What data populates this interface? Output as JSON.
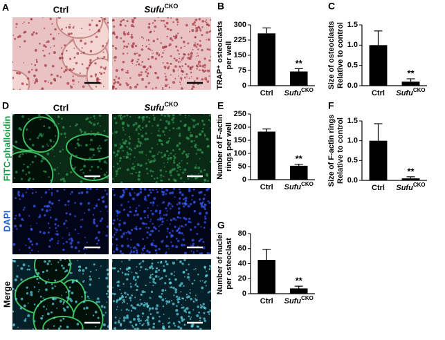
{
  "image_panels": {
    "panel_a": "A",
    "panel_d": "D",
    "col_ctrl": "Ctrl",
    "col_sufu": "Sufu",
    "col_sufu_sup": "CKO",
    "row_labels": [
      "FITC-phalloidin",
      "DAPI",
      "Merge"
    ]
  },
  "chart_data": [
    {
      "type": "bar",
      "panel": "B",
      "ylabel": [
        "TRAP⁺ osteoclasts",
        "per well"
      ],
      "categories": [
        "Ctrl",
        "Sufu"
      ],
      "superscripts": {
        "1": "CKO"
      },
      "values": [
        258,
        70
      ],
      "errors": [
        27,
        14
      ],
      "annotations": {
        "1": "**"
      },
      "color": "#000000",
      "ylim": [
        0,
        300
      ],
      "yticks": [
        0,
        75,
        150,
        225,
        300
      ]
    },
    {
      "type": "bar",
      "panel": "C",
      "ylabel": [
        "Size of osteoclasts",
        "Relative to control"
      ],
      "categories": [
        "Ctrl",
        "Sufu"
      ],
      "superscripts": {
        "1": "CKO"
      },
      "values": [
        1.0,
        0.1
      ],
      "errors": [
        0.35,
        0.07
      ],
      "annotations": {
        "1": "**"
      },
      "color": "#000000",
      "ylim": [
        0,
        1.5
      ],
      "yticks": [
        {
          "value": 0,
          "label": "0.0"
        },
        {
          "value": 0.5,
          "label": "0.5"
        },
        {
          "value": 1,
          "label": "1.0"
        },
        {
          "value": 1.5,
          "label": "1.5"
        }
      ]
    },
    {
      "type": "bar",
      "panel": "E",
      "ylabel": [
        "Number of F-actin",
        "rings per well"
      ],
      "categories": [
        "Ctrl",
        "Sufu"
      ],
      "superscripts": {
        "1": "CKO"
      },
      "values": [
        183,
        53
      ],
      "errors": [
        10,
        6
      ],
      "annotations": {
        "1": "**"
      },
      "color": "#000000",
      "ylim": [
        0,
        250
      ],
      "yticks": [
        0,
        50,
        100,
        150,
        200,
        250
      ]
    },
    {
      "type": "bar",
      "panel": "F",
      "ylabel": [
        "Size of F-actin rings",
        "Relative to control"
      ],
      "categories": [
        "Ctrl",
        "Sufu"
      ],
      "superscripts": {
        "1": "CKO"
      },
      "values": [
        1.0,
        0.05
      ],
      "errors": [
        0.43,
        0.04
      ],
      "annotations": {
        "1": "**"
      },
      "color": "#000000",
      "ylim": [
        0,
        1.5
      ],
      "yticks": [
        {
          "value": 0,
          "label": "0.0"
        },
        {
          "value": 0.5,
          "label": "0.5"
        },
        {
          "value": 1,
          "label": "1.0"
        },
        {
          "value": 1.5,
          "label": "1.5"
        }
      ]
    },
    {
      "type": "bar",
      "panel": "G",
      "ylabel": [
        "Number of nuclei",
        "per osteoclast"
      ],
      "categories": [
        "Ctrl",
        "Sufu"
      ],
      "superscripts": {
        "1": "CKO"
      },
      "values": [
        45,
        7
      ],
      "errors": [
        14,
        3
      ],
      "annotations": {
        "1": "**"
      },
      "color": "#000000",
      "ylim": [
        0,
        80
      ],
      "yticks": [
        0,
        20,
        40,
        60,
        80
      ]
    }
  ]
}
